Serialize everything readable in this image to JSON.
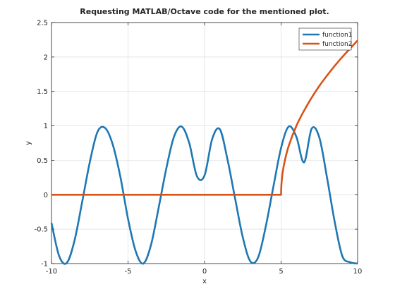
{
  "chart_data": {
    "type": "line",
    "title": "Requesting MATLAB/Octave code for the mentioned plot.",
    "xlabel": "x",
    "ylabel": "y",
    "xlim": [
      -10,
      10
    ],
    "ylim": [
      -1,
      2.5
    ],
    "xticks": [
      -10,
      -5,
      0,
      5,
      10
    ],
    "xtick_labels": [
      "-10",
      "-5",
      "0",
      "5",
      "10"
    ],
    "yticks": [
      -1,
      -0.5,
      0,
      0.5,
      1,
      1.5,
      2,
      2.5
    ],
    "ytick_labels": [
      "-1",
      "-0.5",
      "0",
      "0.5",
      "1",
      "1.5",
      "2",
      "2.5"
    ],
    "grid": true,
    "legend_position": "top-right",
    "series": [
      {
        "name": "function1",
        "color": "#1f77b4",
        "x": [
          -10,
          -9.5,
          -9,
          -8.5,
          -8,
          -7.5,
          -7,
          -6.5,
          -6,
          -5.5,
          -5,
          -4.5,
          -4,
          -3.5,
          -3,
          -2.5,
          -2,
          -1.5,
          -1,
          -0.5,
          0,
          0.5,
          1,
          1.5,
          2,
          2.5,
          3,
          3.5,
          4,
          4.5,
          5,
          5.5,
          6,
          6.5,
          7,
          7.5,
          8,
          8.5,
          9,
          9.5,
          10
        ],
        "y": [
          -0.41,
          -0.89,
          -0.99,
          -0.67,
          -0.11,
          0.47,
          0.91,
          0.97,
          0.73,
          0.26,
          -0.35,
          -0.82,
          -1.0,
          -0.73,
          -0.19,
          0.38,
          0.84,
          0.99,
          0.75,
          0.27,
          0.28,
          0.81,
          0.95,
          0.51,
          -0.06,
          -0.62,
          -0.97,
          -0.91,
          -0.46,
          0.12,
          0.68,
          0.99,
          0.84,
          0.47,
          0.96,
          0.83,
          0.25,
          -0.39,
          -0.89,
          -0.98,
          -1.0
        ]
      },
      {
        "name": "function2",
        "color": "#d95319",
        "x": [
          -10,
          5,
          5.02,
          5.1,
          5.25,
          5.5,
          6,
          6.5,
          7,
          7.5,
          8,
          8.5,
          9,
          9.5,
          10
        ],
        "y": [
          0,
          0,
          0.14,
          0.32,
          0.5,
          0.71,
          1.0,
          1.22,
          1.41,
          1.58,
          1.73,
          1.87,
          2.0,
          2.12,
          2.24
        ]
      }
    ]
  }
}
